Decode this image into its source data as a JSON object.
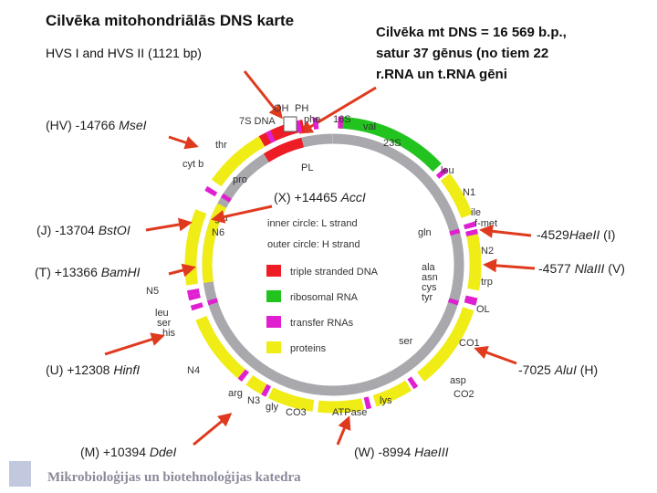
{
  "header": {
    "title": "Cilvēka mitohondriālās DNS karte",
    "subtitle": "HVS I and HVS II (1121 bp)"
  },
  "note": {
    "lines": [
      "Cilvēka mt DNS = 16 569 b.p.,",
      "satur 37 gēnus (no tiem 22",
      "r.RNA un t.RNA gēni"
    ]
  },
  "sites": [
    {
      "prefix": "(HV) -14766 ",
      "enzyme": "MseI"
    },
    {
      "prefix": "(X) +14465 ",
      "enzyme": "AccI"
    },
    {
      "prefix": "(J) -13704 ",
      "enzyme": "BstOI"
    },
    {
      "prefix": "(T) +13366 ",
      "enzyme": "BamHI"
    },
    {
      "prefix": "(U) +12308 ",
      "enzyme": "HinfI"
    },
    {
      "prefix": "(M) +10394 ",
      "enzyme": "DdeI"
    },
    {
      "prefix": "(W) -8994 ",
      "enzyme": "HaeIII"
    },
    {
      "prefix": "-7025 ",
      "enzyme": "AluI",
      "suffix": " (H)"
    },
    {
      "prefix": "-4529",
      "enzyme": "HaeII",
      "suffix": " (I)"
    },
    {
      "prefix": "-4577 ",
      "enzyme": "NlaIII",
      "suffix": " (V)"
    }
  ],
  "map": {
    "genes": [
      "OH",
      "PH",
      "7S DNA",
      "phe",
      "16S",
      "val",
      "23S",
      "leu",
      "N1",
      "ile",
      "f-met",
      "gln",
      "N2",
      "trp",
      "ala",
      "asn",
      "cys",
      "tyr",
      "OL",
      "ser",
      "CO1",
      "asp",
      "CO2",
      "lys",
      "ATPase",
      "CO3",
      "gly",
      "N3",
      "arg",
      "N4",
      "his",
      "ser",
      "leu",
      "N5",
      "N6",
      "glu",
      "cyt b",
      "thr",
      "pro",
      "PL"
    ],
    "strands": [
      "inner circle: L strand",
      "outer circle: H strand"
    ],
    "legend": [
      "triple stranded DNA",
      "ribosomal RNA",
      "transfer RNAs",
      "proteins"
    ]
  },
  "footer": "Mikrobioloģijas un biotehnoloģijas katedra"
}
